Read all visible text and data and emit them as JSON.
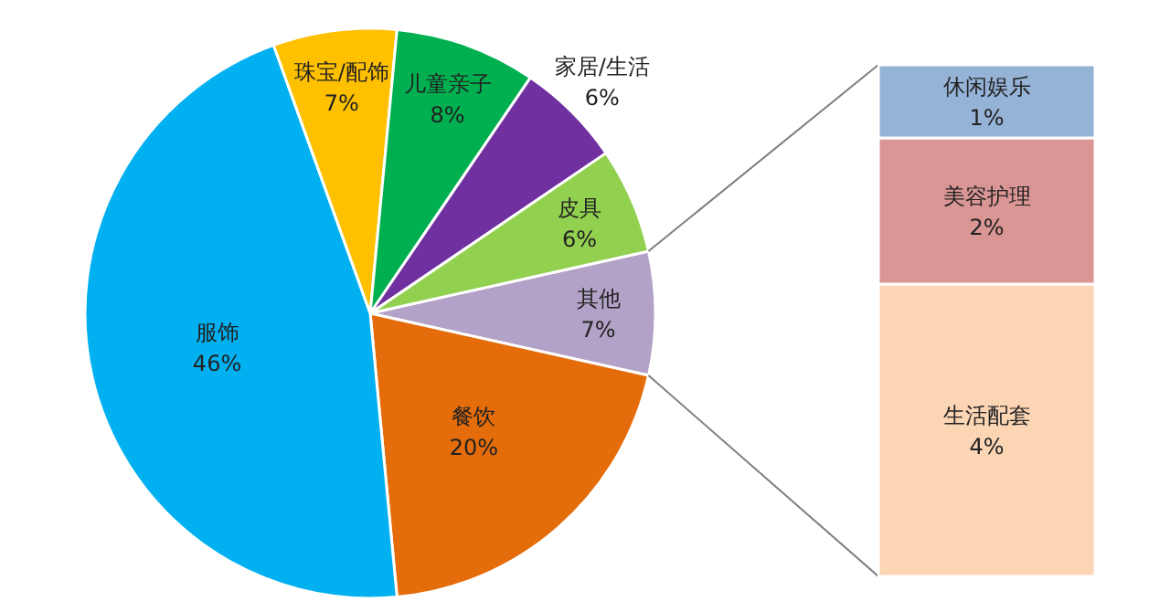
{
  "chart_data": [
    {
      "type": "pie",
      "categories": [
        "其他",
        "餐饮",
        "服饰",
        "珠宝/配饰",
        "儿童亲子",
        "家居/生活",
        "皮具"
      ],
      "values": [
        7,
        20,
        46,
        7,
        8,
        6,
        6
      ],
      "colors": [
        "#b3a2c7",
        "#e46c0a",
        "#00b0f0",
        "#ffc000",
        "#00b050",
        "#7030a0",
        "#92d050"
      ],
      "value_labels": [
        "7%",
        "20%",
        "46%",
        "7%",
        "8%",
        "6%",
        "6%"
      ]
    },
    {
      "type": "bar",
      "stacked": true,
      "categories": [
        null
      ],
      "series": [
        {
          "name": "生活配套",
          "color": "#fcd5b5",
          "values": [
            4
          ],
          "value_labels": [
            "4%"
          ]
        },
        {
          "name": "美容护理",
          "color": "#d99694",
          "values": [
            2
          ],
          "value_labels": [
            "2%"
          ]
        },
        {
          "name": "休闲娱乐",
          "color": "#95b3d7",
          "values": [
            1
          ],
          "value_labels": [
            "1%"
          ]
        }
      ]
    }
  ]
}
